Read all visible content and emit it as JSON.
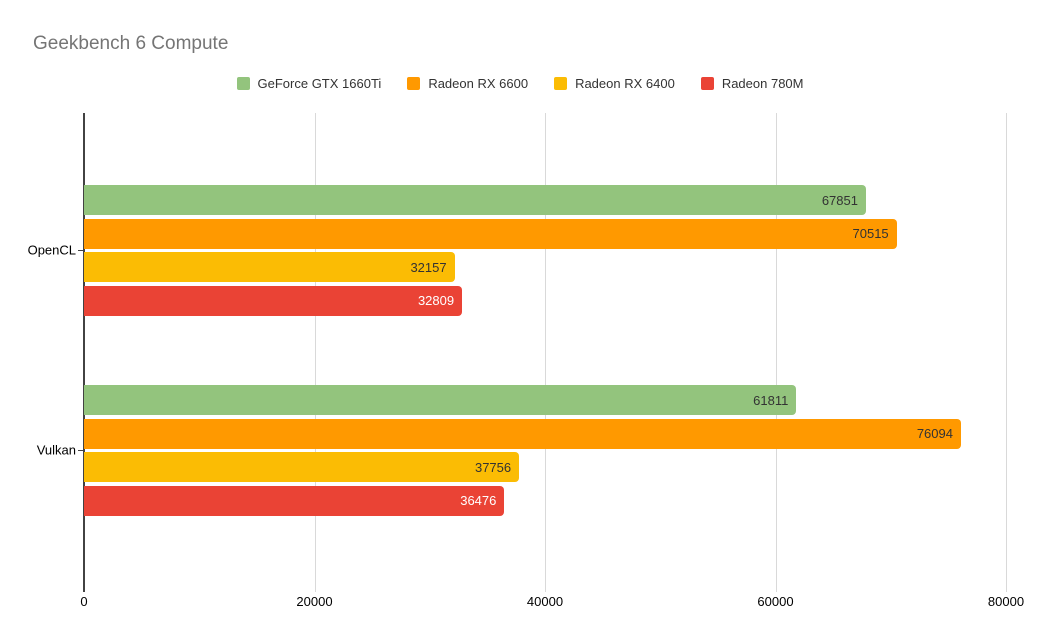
{
  "chart_data": {
    "type": "bar",
    "orientation": "horizontal",
    "title": "Geekbench 6 Compute",
    "categories": [
      "OpenCL",
      "Vulkan"
    ],
    "series": [
      {
        "name": "GeForce GTX 1660Ti",
        "color": "#93c47d",
        "label_color": "#333333",
        "values": [
          67851,
          61811
        ]
      },
      {
        "name": "Radeon RX 6600",
        "color": "#ff9900",
        "label_color": "#333333",
        "values": [
          70515,
          76094
        ]
      },
      {
        "name": "Radeon RX 6400",
        "color": "#fbbc04",
        "label_color": "#333333",
        "values": [
          32157,
          37756
        ]
      },
      {
        "name": "Radeon 780M",
        "color": "#ea4335",
        "label_color": "#ffffff",
        "values": [
          32809,
          36476
        ]
      }
    ],
    "xlim": [
      0,
      80000
    ],
    "xticks": [
      {
        "value": 0,
        "label": "0"
      },
      {
        "value": 20000,
        "label": "20000"
      },
      {
        "value": 40000,
        "label": "40000"
      },
      {
        "value": 60000,
        "label": "60000"
      },
      {
        "value": 80000,
        "label": "80000"
      }
    ],
    "legend_position": "top",
    "grid": true
  }
}
